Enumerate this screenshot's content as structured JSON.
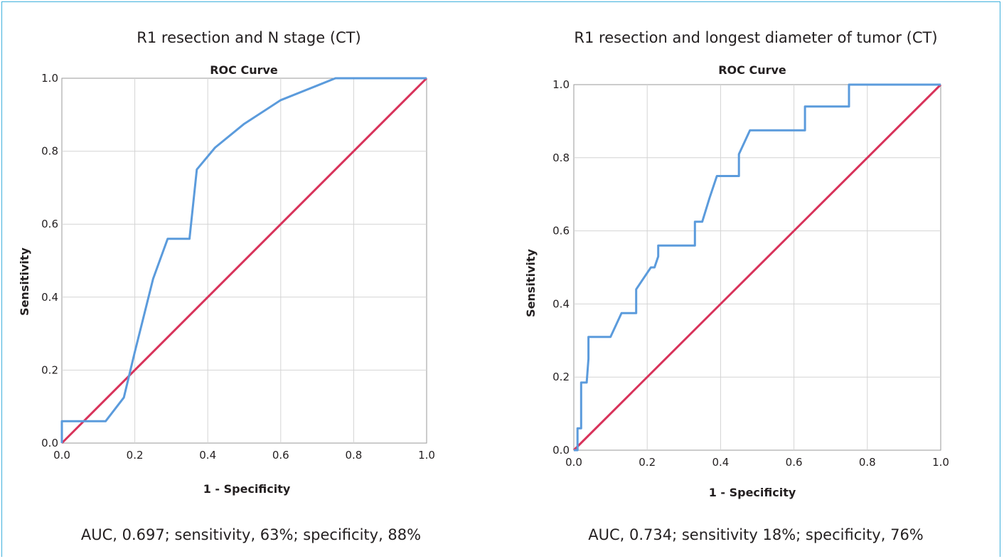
{
  "colors": {
    "frame": "#3fb0dc",
    "roc": "#5b9bdc",
    "reference": "#d8325a",
    "grid": "#d4d4d4",
    "axis": "#9a9a9a"
  },
  "chart_data": [
    {
      "type": "line",
      "panel_title": "R1 resection and N stage (CT)",
      "title": "ROC Curve",
      "xlabel": "1 - Specificity",
      "ylabel": "Sensitivity",
      "xlim": [
        0,
        1
      ],
      "ylim": [
        0,
        1
      ],
      "grid": true,
      "x_ticks": [
        "0.0",
        "0.2",
        "0.4",
        "0.6",
        "0.8",
        "1.0"
      ],
      "y_ticks": [
        "0.0",
        "0.2",
        "0.4",
        "0.6",
        "0.8",
        "1.0"
      ],
      "series": [
        {
          "role": "roc",
          "x": [
            0,
            0,
            0.12,
            0.17,
            0.2,
            0.22,
            0.25,
            0.29,
            0.35,
            0.37,
            0.42,
            0.5,
            0.6,
            0.7,
            0.75,
            1.0
          ],
          "y": [
            0,
            0.06,
            0.06,
            0.125,
            0.25,
            0.33,
            0.45,
            0.56,
            0.56,
            0.75,
            0.81,
            0.875,
            0.94,
            0.98,
            1.0,
            1.0
          ]
        },
        {
          "role": "reference",
          "x": [
            0,
            1
          ],
          "y": [
            0,
            1
          ]
        }
      ],
      "caption": "AUC, 0.697; sensitivity, 63%; specificity, 88%"
    },
    {
      "type": "line",
      "panel_title": "R1 resection and longest diameter of tumor (CT)",
      "title": "ROC Curve",
      "xlabel": "1 - Specificity",
      "ylabel": "Sensitivity",
      "xlim": [
        0,
        1
      ],
      "ylim": [
        0,
        1
      ],
      "grid": true,
      "x_ticks": [
        "0.0",
        "0.2",
        "0.4",
        "0.6",
        "0.8",
        "1.0"
      ],
      "y_ticks": [
        "0.0",
        "0.2",
        "0.4",
        "0.6",
        "0.8",
        "1.0"
      ],
      "series": [
        {
          "role": "roc",
          "x": [
            0,
            0.01,
            0.01,
            0.02,
            0.02,
            0.035,
            0.04,
            0.04,
            0.1,
            0.13,
            0.17,
            0.17,
            0.19,
            0.21,
            0.22,
            0.23,
            0.23,
            0.33,
            0.33,
            0.35,
            0.37,
            0.39,
            0.45,
            0.45,
            0.48,
            0.63,
            0.63,
            0.75,
            0.75,
            1.0
          ],
          "y": [
            0,
            0,
            0.06,
            0.06,
            0.185,
            0.185,
            0.25,
            0.31,
            0.31,
            0.375,
            0.375,
            0.44,
            0.47,
            0.5,
            0.5,
            0.53,
            0.56,
            0.56,
            0.625,
            0.625,
            0.69,
            0.75,
            0.75,
            0.81,
            0.875,
            0.875,
            0.94,
            0.94,
            1.0,
            1.0
          ]
        },
        {
          "role": "reference",
          "x": [
            0,
            1
          ],
          "y": [
            0,
            1
          ]
        }
      ],
      "caption": "AUC, 0.734; sensitivity 18%; specificity, 76%"
    }
  ]
}
